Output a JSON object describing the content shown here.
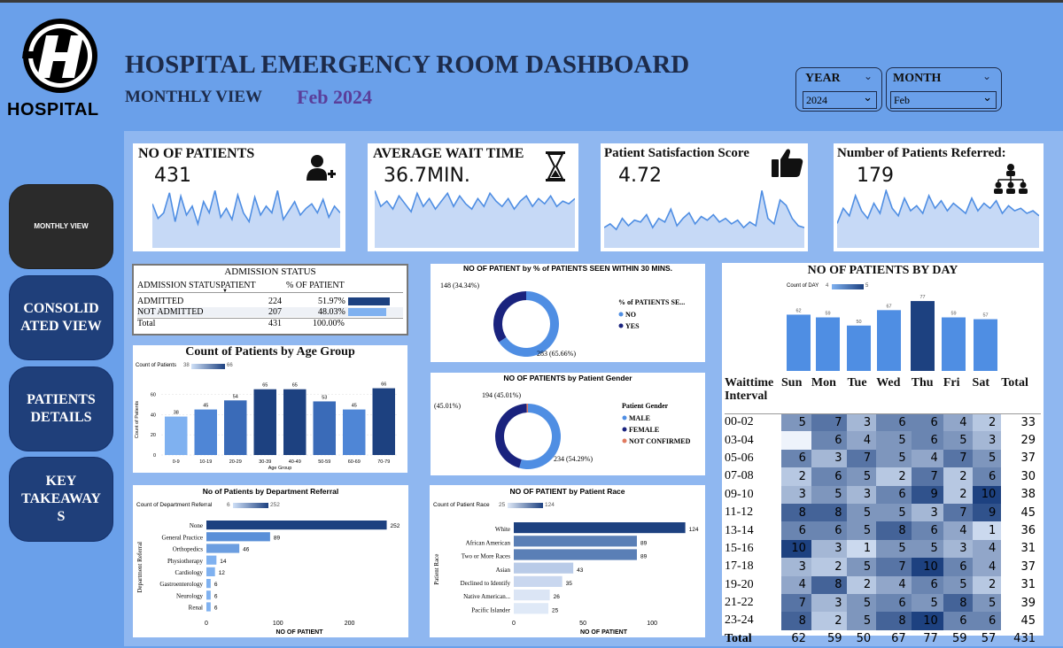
{
  "header": {
    "logo_text": "HOSPITAL",
    "title": "HOSPITAL EMERGENCY ROOM DASHBOARD",
    "subtitle": "MONTHLY VIEW",
    "period": "Feb 2024",
    "year_label": "YEAR",
    "year_value": "2024",
    "month_label": "MONTH",
    "month_value": "Feb"
  },
  "nav": {
    "monthly": "MONTHLY VIEW",
    "consolidated": "CONSOLID ATED VIEW",
    "patients": "PATIENTS DETAILS",
    "takeaways": "KEY TAKEAWAY S"
  },
  "kpis": [
    {
      "title": "NO OF PATIENTS",
      "value": "431",
      "icon": "add-user-icon"
    },
    {
      "title": "AVERAGE WAIT TIME",
      "value": "36.7MIN.",
      "icon": "hourglass-icon"
    },
    {
      "title": "Patient Satisfaction Score",
      "value": "4.72",
      "icon": "thumbs-up-icon"
    },
    {
      "title": "Number of Patients Referred:",
      "value": "179",
      "icon": "org-chart-icon"
    }
  ],
  "sparklines": [
    [
      38,
      25,
      30,
      48,
      22,
      45,
      28,
      36,
      20,
      40,
      30,
      50,
      26,
      34,
      24,
      46,
      30,
      22,
      44,
      28,
      36,
      30,
      50,
      24,
      32,
      40,
      28,
      34,
      38,
      30,
      42,
      26,
      36,
      30
    ],
    [
      42,
      30,
      34,
      28,
      38,
      32,
      26,
      40,
      30,
      36,
      28,
      34,
      40,
      30,
      38,
      32,
      28,
      36,
      30,
      40,
      34,
      30,
      36,
      28,
      34,
      38,
      30,
      36,
      32,
      38,
      30,
      34,
      32,
      36
    ],
    [
      20,
      24,
      18,
      30,
      22,
      28,
      26,
      34,
      20,
      30,
      26,
      40,
      22,
      30,
      36,
      24,
      32,
      28,
      34,
      26,
      30,
      24,
      28,
      20,
      26,
      22,
      60,
      30,
      24,
      50,
      44,
      30,
      22,
      20
    ],
    [
      18,
      30,
      24,
      40,
      28,
      22,
      34,
      26,
      44,
      30,
      24,
      38,
      28,
      32,
      26,
      40,
      30,
      36,
      28,
      34,
      30,
      26,
      38,
      28,
      34,
      30,
      36,
      26,
      32,
      28,
      30,
      26,
      28,
      24
    ]
  ],
  "admission": {
    "title": "ADMISSION STATUS",
    "headers": [
      "ADMISSION STATUS",
      "PATIENT",
      "% OF PATIENT"
    ],
    "rows": [
      {
        "status": "ADMITTED",
        "patients": "224",
        "pct": "51.97%",
        "frac": 0.5197
      },
      {
        "status": "NOT ADMITTED",
        "patients": "207",
        "pct": "48.03%",
        "frac": 0.4803
      }
    ],
    "total": {
      "status": "Total",
      "patients": "431",
      "pct": "100.00%"
    }
  },
  "chart_data": [
    {
      "id": "age",
      "type": "bar",
      "title": "Count of Patients by Age Group",
      "legend_label": "Count of Patients",
      "legend_min": "38",
      "legend_max": "66",
      "xlabel": "Age Group",
      "ylabel": "Count of Patients",
      "categories": [
        "0-9",
        "10-19",
        "20-29",
        "30-39",
        "40-49",
        "50-59",
        "60-69",
        "70-79"
      ],
      "values": [
        38,
        45,
        54,
        65,
        65,
        53,
        45,
        66
      ],
      "yticks": [
        "0",
        "20",
        "40",
        "60"
      ],
      "ylim": [
        0,
        70
      ],
      "colors": [
        "#7fb1f0",
        "#4f86d6",
        "#3a6bb8",
        "#1d4180",
        "#1d4180",
        "#3a6bb8",
        "#4f86d6",
        "#1d4180"
      ]
    },
    {
      "id": "day",
      "type": "bar",
      "title": "NO OF PATIENTS BY DAY",
      "legend_label": "Count of DAY",
      "legend_min": "4",
      "legend_max": "5",
      "categories": [
        "Sun",
        "Mon",
        "Tue",
        "Wed",
        "Thu",
        "Fri",
        "Sat"
      ],
      "values": [
        62,
        59,
        50,
        67,
        77,
        59,
        57
      ],
      "ylim": [
        0,
        80
      ],
      "colors": [
        "#4f8ee3",
        "#4f8ee3",
        "#4f8ee3",
        "#4f8ee3",
        "#1d4180",
        "#4f8ee3",
        "#4f8ee3"
      ]
    },
    {
      "id": "seen",
      "type": "pie",
      "title": "NO OF PATIENT by % of PATIENTS SEEN WITHIN 30 MINS.",
      "legend_title": "% of PATIENTS SE...",
      "slices": [
        {
          "label": "NO",
          "value": 283,
          "text": "283 (65.66%)",
          "color": "#4f8ee3"
        },
        {
          "label": "YES",
          "value": 148,
          "text": "148 (34.34%)",
          "color": "#1a237e"
        }
      ]
    },
    {
      "id": "gender",
      "type": "pie",
      "title": "NO OF PATIENTS by Patient Gender",
      "legend_title": "Patient Gender",
      "slices": [
        {
          "label": "MALE",
          "value": 234,
          "text": "234 (54.29%)",
          "color": "#4f8ee3"
        },
        {
          "label": "FEMALE",
          "value": 194,
          "text": "194 (45.01%)",
          "color": "#1a237e"
        },
        {
          "label": "NOT CONFIRMED",
          "value": 3,
          "text": "",
          "color": "#e07a5f"
        }
      ]
    },
    {
      "id": "dept",
      "type": "bar",
      "orientation": "horizontal",
      "title": "No of Patients by Department Referral",
      "legend_label": "Count of Department Referral",
      "legend_min": "6",
      "legend_max": "252",
      "xlabel": "NO OF PATIENT",
      "ylabel": "Department Referral",
      "categories": [
        "None",
        "General Practice",
        "Orthopedics",
        "Physiotherapy",
        "Cardiology",
        "Gastroenterology",
        "Neurology",
        "Renal"
      ],
      "values": [
        252,
        89,
        46,
        14,
        12,
        6,
        6,
        6
      ],
      "xticks": [
        "0",
        "100",
        "200"
      ],
      "xlim": [
        0,
        260
      ],
      "colors": [
        "#1d4180",
        "#5a8fd8",
        "#6c9ee0",
        "#7fb1f0",
        "#7fb1f0",
        "#7fb1f0",
        "#7fb1f0",
        "#7fb1f0"
      ]
    },
    {
      "id": "race",
      "type": "bar",
      "orientation": "horizontal",
      "title": "NO OF PATIENT by Patient Race",
      "legend_label": "Count of Patient Race",
      "legend_min": "25",
      "legend_max": "124",
      "xlabel": "NO OF PATIENT",
      "ylabel": "Patient Race",
      "categories": [
        "White",
        "African American",
        "Two or More Races",
        "Asian",
        "Declined to Identify",
        "Native American...",
        "Pacific Islander"
      ],
      "values": [
        124,
        89,
        89,
        43,
        35,
        26,
        25
      ],
      "xticks": [
        "0",
        "50",
        "100"
      ],
      "xlim": [
        0,
        130
      ],
      "colors": [
        "#1d4180",
        "#5a7fb6",
        "#5a7fb6",
        "#b9cbe8",
        "#c9d7ef",
        "#dbe5f5",
        "#dfe9f7"
      ]
    },
    {
      "id": "heatmap",
      "type": "heatmap",
      "row_header": "Waittime Interval",
      "columns": [
        "Sun",
        "Mon",
        "Tue",
        "Wed",
        "Thu",
        "Fri",
        "Sat"
      ],
      "total_label": "Total",
      "rows": [
        {
          "label": "00-02",
          "values": [
            5,
            7,
            3,
            6,
            6,
            4,
            2
          ],
          "total": 33
        },
        {
          "label": "03-04",
          "values": [
            null,
            6,
            4,
            5,
            6,
            5,
            3
          ],
          "total": 29
        },
        {
          "label": "05-06",
          "values": [
            6,
            3,
            7,
            5,
            4,
            7,
            5
          ],
          "total": 37
        },
        {
          "label": "07-08",
          "values": [
            2,
            6,
            5,
            2,
            7,
            2,
            6
          ],
          "total": 30
        },
        {
          "label": "09-10",
          "values": [
            3,
            5,
            3,
            6,
            9,
            2,
            10
          ],
          "total": 38
        },
        {
          "label": "11-12",
          "values": [
            8,
            8,
            5,
            5,
            3,
            7,
            9
          ],
          "total": 45
        },
        {
          "label": "13-14",
          "values": [
            6,
            6,
            5,
            8,
            6,
            4,
            1
          ],
          "total": 36
        },
        {
          "label": "15-16",
          "values": [
            10,
            3,
            1,
            5,
            5,
            3,
            4
          ],
          "total": 31
        },
        {
          "label": "17-18",
          "values": [
            3,
            2,
            5,
            7,
            10,
            6,
            4
          ],
          "total": 37
        },
        {
          "label": "19-20",
          "values": [
            4,
            8,
            2,
            4,
            6,
            5,
            2
          ],
          "total": 31
        },
        {
          "label": "21-22",
          "values": [
            7,
            3,
            5,
            6,
            5,
            8,
            5
          ],
          "total": 39
        },
        {
          "label": "23-24",
          "values": [
            8,
            2,
            5,
            8,
            10,
            6,
            6
          ],
          "total": 45
        }
      ],
      "totals_row": {
        "label": "Total",
        "values": [
          62,
          59,
          50,
          67,
          77,
          59,
          57
        ],
        "total": 431
      }
    }
  ]
}
